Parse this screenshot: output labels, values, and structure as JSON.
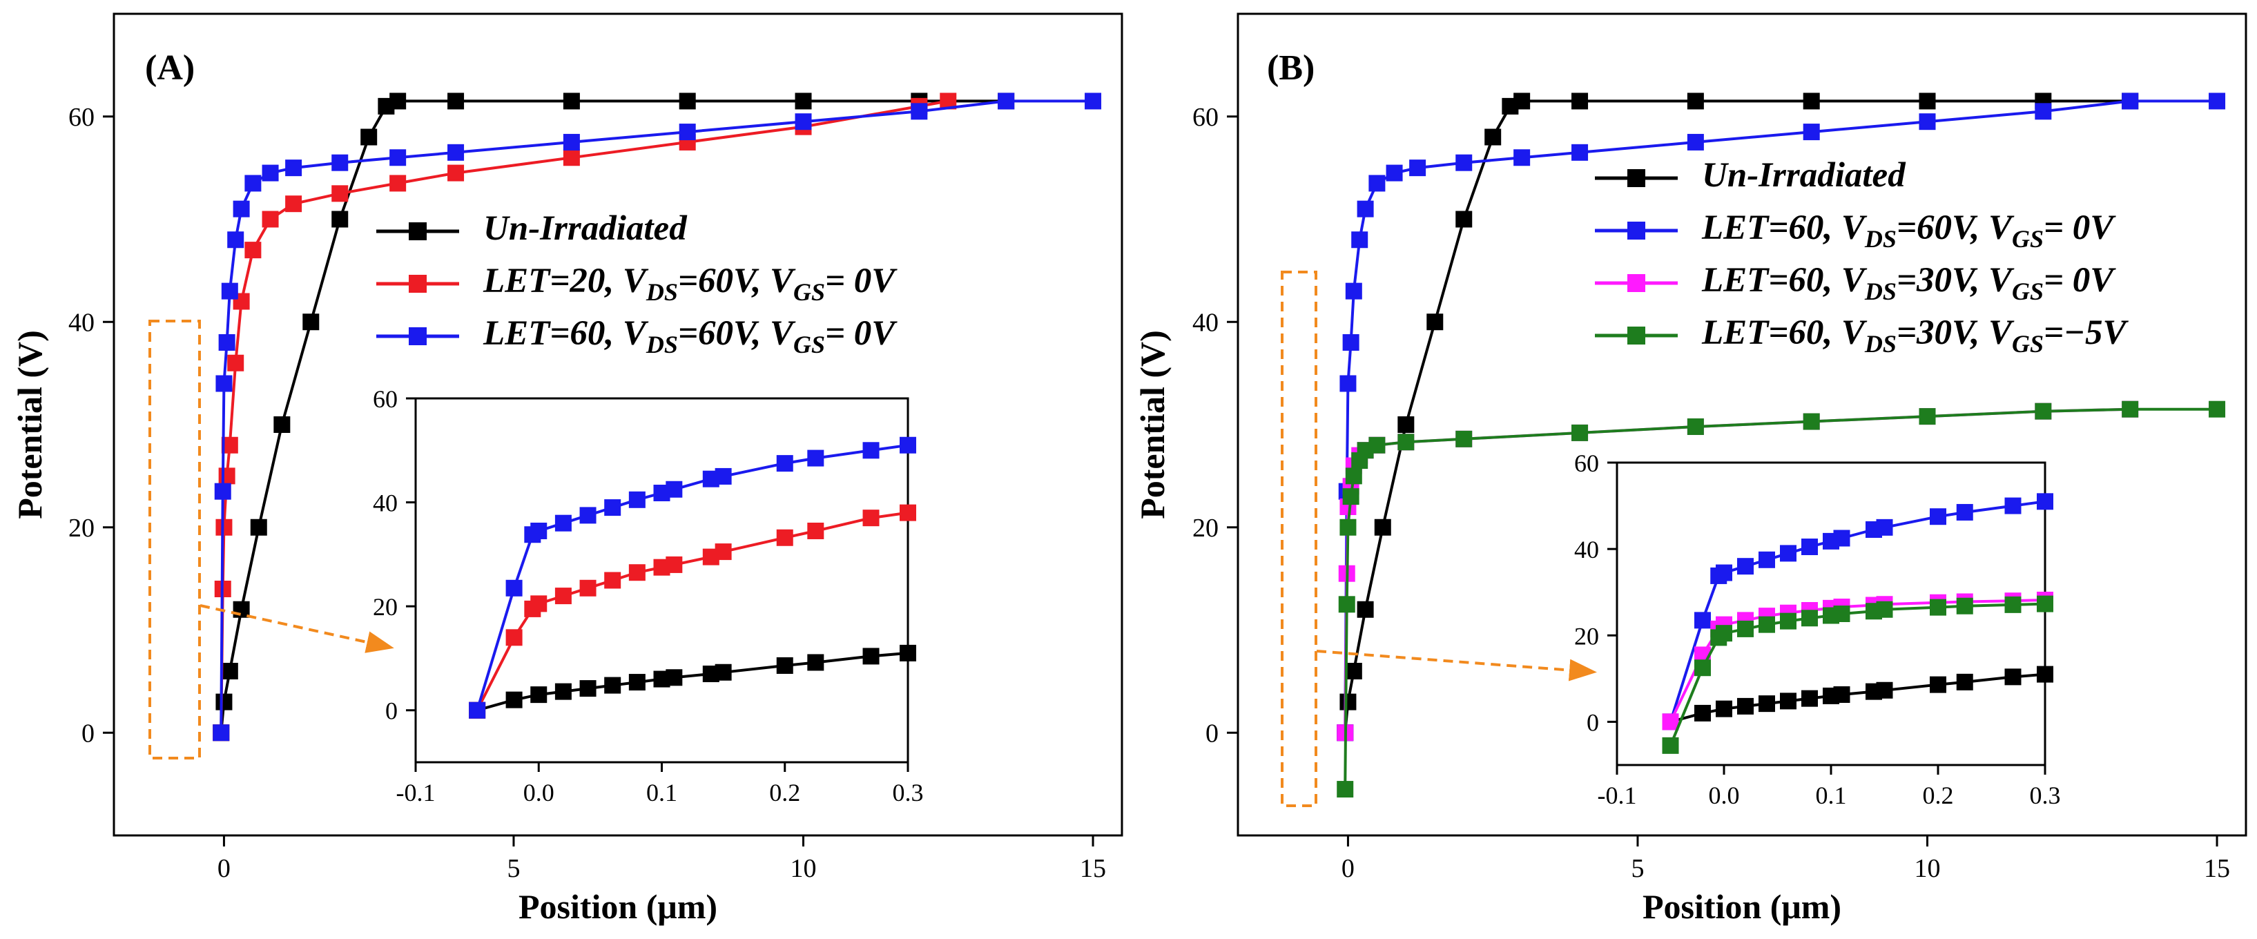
{
  "chart_data": [
    {
      "panel_label": "(A)",
      "type": "line",
      "xlabel": "Position (μm)",
      "ylabel": "Potential (V)",
      "xlim": [
        -1.9,
        15.5
      ],
      "ylim": [
        -10,
        70
      ],
      "x_ticks": [
        {
          "v": 0,
          "t": "0"
        },
        {
          "v": 5,
          "t": "5"
        },
        {
          "v": 10,
          "t": "10"
        },
        {
          "v": 15,
          "t": "15"
        }
      ],
      "y_ticks": [
        {
          "v": 0,
          "t": "0"
        },
        {
          "v": 20,
          "t": "20"
        },
        {
          "v": 40,
          "t": "40"
        },
        {
          "v": 60,
          "t": "60"
        }
      ],
      "legend": [
        {
          "color": "#000000",
          "parts": [
            "Un-Irradiated"
          ]
        },
        {
          "color": "#ed1c24",
          "parts": [
            "LET=20, V",
            "DS",
            "=60V, V",
            "GS",
            "= 0V"
          ]
        },
        {
          "color": "#1a1aee",
          "parts": [
            "LET=60, V",
            "DS",
            "=60V, V",
            "GS",
            "= 0V"
          ]
        }
      ],
      "series": [
        {
          "name": "Un-Irradiated",
          "color": "#000000",
          "x": [
            -0.05,
            0.0,
            0.1,
            0.3,
            0.6,
            1.0,
            1.5,
            2.0,
            2.5,
            2.8,
            3.0,
            4,
            6,
            8,
            10,
            12,
            13.5
          ],
          "y": [
            0.0,
            3.0,
            6.0,
            12,
            20,
            30,
            40,
            50,
            58,
            61,
            61.5,
            61.5,
            61.5,
            61.5,
            61.5,
            61.5,
            61.5
          ]
        },
        {
          "name": "LET=20, VDS=60V, VGS= 0V",
          "color": "#ed1c24",
          "x": [
            -0.05,
            -0.02,
            0.0,
            0.05,
            0.1,
            0.2,
            0.3,
            0.5,
            0.8,
            1.2,
            2,
            3,
            4,
            6,
            8,
            10,
            12,
            12.5
          ],
          "y": [
            0,
            14,
            20,
            25,
            28,
            36,
            42,
            47,
            50,
            51.5,
            52.5,
            53.5,
            54.5,
            56,
            57.5,
            59,
            61,
            61.5
          ]
        },
        {
          "name": "LET=60, VDS=60V, VGS= 0V",
          "color": "#1a1aee",
          "x": [
            -0.05,
            -0.02,
            0.0,
            0.05,
            0.1,
            0.2,
            0.3,
            0.5,
            0.8,
            1.2,
            2,
            3,
            4,
            6,
            8,
            10,
            12,
            13.5,
            15
          ],
          "y": [
            0,
            23.5,
            34,
            38,
            43,
            48,
            51,
            53.5,
            54.5,
            55,
            55.5,
            56,
            56.5,
            57.5,
            58.5,
            59.5,
            60.5,
            61.5,
            61.5
          ]
        }
      ],
      "inset": {
        "xlim": [
          -0.1,
          0.3
        ],
        "ylim": [
          -10,
          60
        ],
        "x_ticks": [
          {
            "v": -0.1,
            "t": "-0.1"
          },
          {
            "v": 0.0,
            "t": "0.0"
          },
          {
            "v": 0.1,
            "t": "0.1"
          },
          {
            "v": 0.2,
            "t": "0.2"
          },
          {
            "v": 0.3,
            "t": "0.3"
          }
        ],
        "y_ticks": [
          {
            "v": 0,
            "t": "0"
          },
          {
            "v": 20,
            "t": "20"
          },
          {
            "v": 40,
            "t": "40"
          },
          {
            "v": 60,
            "t": "60"
          }
        ],
        "series": [
          {
            "color": "#000000",
            "x": [
              -0.05,
              -0.02,
              0.0,
              0.02,
              0.04,
              0.06,
              0.08,
              0.1,
              0.11,
              0.14,
              0.15,
              0.2,
              0.225,
              0.27,
              0.3
            ],
            "y": [
              0,
              2,
              3,
              3.6,
              4.2,
              4.8,
              5.4,
              6,
              6.3,
              7,
              7.3,
              8.6,
              9.2,
              10.4,
              11
            ]
          },
          {
            "color": "#ed1c24",
            "x": [
              -0.05,
              -0.02,
              -0.005,
              0.0,
              0.02,
              0.04,
              0.06,
              0.08,
              0.1,
              0.11,
              0.14,
              0.15,
              0.2,
              0.225,
              0.27,
              0.3
            ],
            "y": [
              0,
              14,
              19.5,
              20.5,
              22,
              23.5,
              25,
              26.5,
              27.5,
              28,
              29.5,
              30.5,
              33.2,
              34.5,
              37,
              38
            ]
          },
          {
            "color": "#1a1aee",
            "x": [
              -0.05,
              -0.02,
              -0.005,
              0.0,
              0.02,
              0.04,
              0.06,
              0.08,
              0.1,
              0.11,
              0.14,
              0.15,
              0.2,
              0.225,
              0.27,
              0.3
            ],
            "y": [
              0,
              23.5,
              33.8,
              34.5,
              36,
              37.5,
              39,
              40.5,
              41.8,
              42.5,
              44.5,
              45,
              47.5,
              48.5,
              50,
              51
            ]
          }
        ]
      }
    },
    {
      "panel_label": "(B)",
      "type": "line",
      "xlabel": "Position (μm)",
      "ylabel": "Potential (V)",
      "xlim": [
        -1.9,
        15.5
      ],
      "ylim": [
        -10,
        70
      ],
      "x_ticks": [
        {
          "v": 0,
          "t": "0"
        },
        {
          "v": 5,
          "t": "5"
        },
        {
          "v": 10,
          "t": "10"
        },
        {
          "v": 15,
          "t": "15"
        }
      ],
      "y_ticks": [
        {
          "v": 0,
          "t": "0"
        },
        {
          "v": 20,
          "t": "20"
        },
        {
          "v": 40,
          "t": "40"
        },
        {
          "v": 60,
          "t": "60"
        }
      ],
      "legend": [
        {
          "color": "#000000",
          "parts": [
            "Un-Irradiated"
          ]
        },
        {
          "color": "#1a1aee",
          "parts": [
            "LET=60, V",
            "DS",
            "=60V, V",
            "GS",
            "= 0V"
          ]
        },
        {
          "color": "#ff1aff",
          "parts": [
            "LET=60, V",
            "DS",
            "=30V, V",
            "GS",
            "= 0V"
          ]
        },
        {
          "color": "#1e7d1e",
          "parts": [
            "LET=60, V",
            "DS",
            "=30V, V",
            "GS",
            "=−5V"
          ]
        }
      ],
      "series": [
        {
          "name": "Un-Irradiated",
          "color": "#000000",
          "x": [
            -0.05,
            0.0,
            0.1,
            0.3,
            0.6,
            1.0,
            1.5,
            2.0,
            2.5,
            2.8,
            3.0,
            4,
            6,
            8,
            10,
            12,
            13.5
          ],
          "y": [
            0.0,
            3.0,
            6.0,
            12,
            20,
            30,
            40,
            50,
            58,
            61,
            61.5,
            61.5,
            61.5,
            61.5,
            61.5,
            61.5,
            61.5
          ]
        },
        {
          "name": "LET=60, VDS=60V, VGS= 0V",
          "color": "#1a1aee",
          "x": [
            -0.05,
            -0.02,
            0.0,
            0.05,
            0.1,
            0.2,
            0.3,
            0.5,
            0.8,
            1.2,
            2,
            3,
            4,
            6,
            8,
            10,
            12,
            13.5,
            15
          ],
          "y": [
            0,
            23.5,
            34,
            38,
            43,
            48,
            51,
            53.5,
            54.5,
            55,
            55.5,
            56,
            56.5,
            57.5,
            58.5,
            59.5,
            60.5,
            61.5,
            61.5
          ]
        },
        {
          "name": "LET=60, VDS=30V, VGS= 0V",
          "color": "#ff1aff",
          "x": [
            -0.05,
            -0.02,
            0.0,
            0.05,
            0.1,
            0.2,
            0.3,
            0.5,
            1,
            2,
            4,
            6,
            8,
            10,
            12,
            13.5
          ],
          "y": [
            0,
            15.5,
            22,
            24,
            26,
            27,
            27.5,
            28,
            28.3,
            28.6,
            29.2,
            29.8,
            30.3,
            30.8,
            31.3,
            31.5
          ]
        },
        {
          "name": "LET=60, VDS=30V, VGS=-5V",
          "color": "#1e7d1e",
          "x": [
            -0.05,
            -0.02,
            0.0,
            0.05,
            0.1,
            0.2,
            0.3,
            0.5,
            1,
            2,
            4,
            6,
            8,
            10,
            12,
            13.5,
            15
          ],
          "y": [
            -5.5,
            12.5,
            20,
            23,
            25,
            26.5,
            27.5,
            28,
            28.3,
            28.6,
            29.2,
            29.8,
            30.3,
            30.8,
            31.3,
            31.5,
            31.5
          ]
        }
      ],
      "inset": {
        "xlim": [
          -0.1,
          0.3
        ],
        "ylim": [
          -10,
          60
        ],
        "x_ticks": [
          {
            "v": -0.1,
            "t": "-0.1"
          },
          {
            "v": 0.0,
            "t": "0.0"
          },
          {
            "v": 0.1,
            "t": "0.1"
          },
          {
            "v": 0.2,
            "t": "0.2"
          },
          {
            "v": 0.3,
            "t": "0.3"
          }
        ],
        "y_ticks": [
          {
            "v": 0,
            "t": "0"
          },
          {
            "v": 20,
            "t": "20"
          },
          {
            "v": 40,
            "t": "40"
          },
          {
            "v": 60,
            "t": "60"
          }
        ],
        "series": [
          {
            "color": "#000000",
            "x": [
              -0.05,
              -0.02,
              0.0,
              0.02,
              0.04,
              0.06,
              0.08,
              0.1,
              0.11,
              0.14,
              0.15,
              0.2,
              0.225,
              0.27,
              0.3
            ],
            "y": [
              0,
              2,
              3,
              3.6,
              4.2,
              4.8,
              5.4,
              6,
              6.3,
              7,
              7.3,
              8.6,
              9.2,
              10.4,
              11
            ]
          },
          {
            "color": "#1a1aee",
            "x": [
              -0.05,
              -0.02,
              -0.005,
              0.0,
              0.02,
              0.04,
              0.06,
              0.08,
              0.1,
              0.11,
              0.14,
              0.15,
              0.2,
              0.225,
              0.27,
              0.3
            ],
            "y": [
              0,
              23.5,
              33.8,
              34.5,
              36,
              37.5,
              39,
              40.5,
              41.8,
              42.5,
              44.5,
              45,
              47.5,
              48.5,
              50,
              51
            ]
          },
          {
            "color": "#ff1aff",
            "x": [
              -0.05,
              -0.02,
              -0.005,
              0.0,
              0.02,
              0.04,
              0.06,
              0.08,
              0.1,
              0.11,
              0.14,
              0.15,
              0.2,
              0.225,
              0.27,
              0.3
            ],
            "y": [
              0,
              15.5,
              21.5,
              22.5,
              23.5,
              24.5,
              25.2,
              25.8,
              26.3,
              26.6,
              27,
              27.2,
              27.6,
              27.8,
              28,
              28.2
            ]
          },
          {
            "color": "#1e7d1e",
            "x": [
              -0.05,
              -0.02,
              -0.005,
              0.0,
              0.02,
              0.04,
              0.06,
              0.08,
              0.1,
              0.11,
              0.14,
              0.15,
              0.2,
              0.225,
              0.27,
              0.3
            ],
            "y": [
              -5.5,
              12.5,
              19.5,
              20.5,
              21.5,
              22.5,
              23.3,
              24,
              24.6,
              25,
              25.6,
              26,
              26.5,
              26.8,
              27.1,
              27.3
            ]
          }
        ]
      }
    }
  ]
}
